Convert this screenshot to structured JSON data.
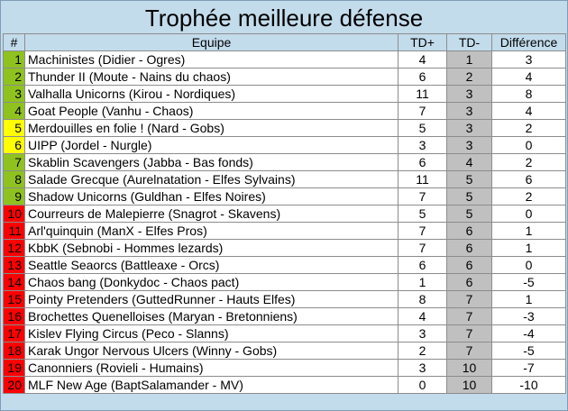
{
  "title": "Trophée meilleure défense",
  "columns": [
    "#",
    "Equipe",
    "TD+",
    "TD-",
    "Différence"
  ],
  "rank_colors": {
    "green": "#8fc21f",
    "yellow": "#ffff00",
    "red": "#ff0000"
  },
  "rows": [
    {
      "rank": "1",
      "team": "Machinistes (Didier - Ogres)",
      "td_plus": "4",
      "td_minus": "1",
      "diff": "3",
      "color": "g"
    },
    {
      "rank": "2",
      "team": "Thunder II (Moute - Nains du chaos)",
      "td_plus": "6",
      "td_minus": "2",
      "diff": "4",
      "color": "g"
    },
    {
      "rank": "3",
      "team": "Valhalla Unicorns (Kirou - Nordiques)",
      "td_plus": "11",
      "td_minus": "3",
      "diff": "8",
      "color": "g"
    },
    {
      "rank": "4",
      "team": "Goat People (Vanhu - Chaos)",
      "td_plus": "7",
      "td_minus": "3",
      "diff": "4",
      "color": "g"
    },
    {
      "rank": "5",
      "team": "Merdouilles en folie ! (Nard - Gobs)",
      "td_plus": "5",
      "td_minus": "3",
      "diff": "2",
      "color": "y"
    },
    {
      "rank": "6",
      "team": "UIPP (Jordel - Nurgle)",
      "td_plus": "3",
      "td_minus": "3",
      "diff": "0",
      "color": "y"
    },
    {
      "rank": "7",
      "team": "Skablin Scavengers (Jabba - Bas fonds)",
      "td_plus": "6",
      "td_minus": "4",
      "diff": "2",
      "color": "g"
    },
    {
      "rank": "8",
      "team": "Salade Grecque (Aurelnatation - Elfes Sylvains)",
      "td_plus": "11",
      "td_minus": "5",
      "diff": "6",
      "color": "g"
    },
    {
      "rank": "9",
      "team": "Shadow Unicorns (Guldhan - Elfes Noires)",
      "td_plus": "7",
      "td_minus": "5",
      "diff": "2",
      "color": "g"
    },
    {
      "rank": "10",
      "team": "Courreurs de Malepierre (Snagrot - Skavens)",
      "td_plus": "5",
      "td_minus": "5",
      "diff": "0",
      "color": "r"
    },
    {
      "rank": "11",
      "team": "Arl'quinquin (ManX - Elfes Pros)",
      "td_plus": "7",
      "td_minus": "6",
      "diff": "1",
      "color": "r"
    },
    {
      "rank": "12",
      "team": "KbbK (Sebnobi - Hommes lezards)",
      "td_plus": "7",
      "td_minus": "6",
      "diff": "1",
      "color": "r"
    },
    {
      "rank": "13",
      "team": "Seattle Seaorcs (Battleaxe - Orcs)",
      "td_plus": "6",
      "td_minus": "6",
      "diff": "0",
      "color": "r"
    },
    {
      "rank": "14",
      "team": "Chaos bang (Donkydoc - Chaos pact)",
      "td_plus": "1",
      "td_minus": "6",
      "diff": "-5",
      "color": "r"
    },
    {
      "rank": "15",
      "team": "Pointy Pretenders (GuttedRunner - Hauts Elfes)",
      "td_plus": "8",
      "td_minus": "7",
      "diff": "1",
      "color": "r"
    },
    {
      "rank": "16",
      "team": "Brochettes Quenelloises (Maryan - Bretonniens)",
      "td_plus": "4",
      "td_minus": "7",
      "diff": "-3",
      "color": "r"
    },
    {
      "rank": "17",
      "team": "Kislev Flying Circus (Peco - Slanns)",
      "td_plus": "3",
      "td_minus": "7",
      "diff": "-4",
      "color": "r"
    },
    {
      "rank": "18",
      "team": "Karak Ungor Nervous Ulcers (Winny - Gobs)",
      "td_plus": "2",
      "td_minus": "7",
      "diff": "-5",
      "color": "r"
    },
    {
      "rank": "19",
      "team": "Canonniers (Rovieli - Humains)",
      "td_plus": "3",
      "td_minus": "10",
      "diff": "-7",
      "color": "r"
    },
    {
      "rank": "20",
      "team": "MLF New Age (BaptSalamander - MV)",
      "td_plus": "0",
      "td_minus": "10",
      "diff": "-10",
      "color": "r"
    }
  ]
}
